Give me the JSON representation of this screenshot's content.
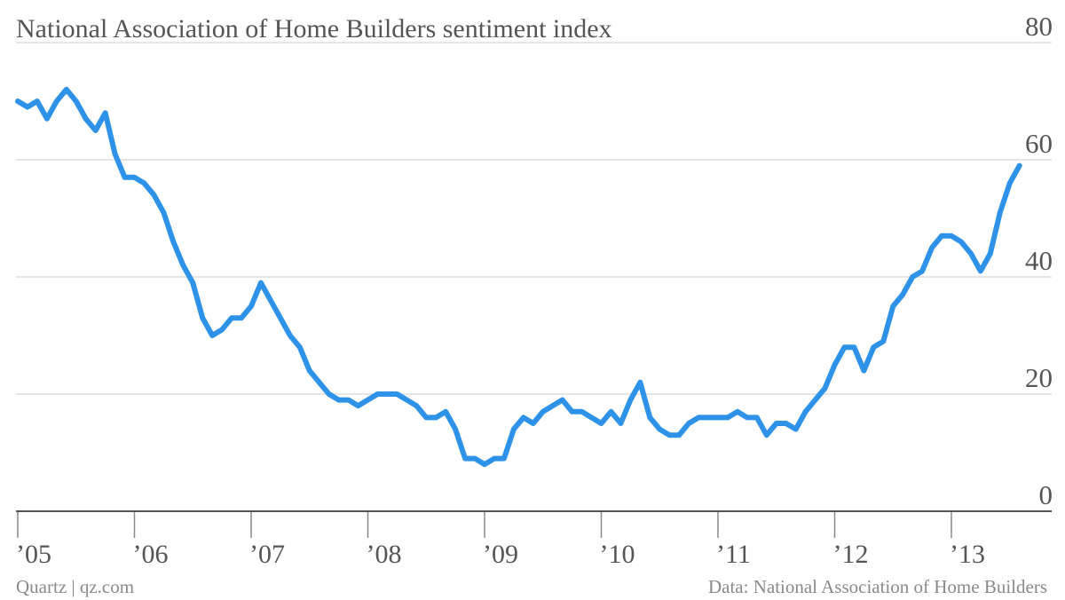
{
  "chart_data": {
    "type": "line",
    "title": "National Association of Home Builders sentiment index",
    "xlabel": "",
    "ylabel": "",
    "ylim": [
      0,
      80
    ],
    "yticks": [
      "0",
      "20",
      "40",
      "60",
      "80"
    ],
    "xticks": [
      "’05",
      "’06",
      "’07",
      "’08",
      "’09",
      "’10",
      "’11",
      "’12",
      "’13"
    ],
    "x_start": "2005-01",
    "x_end": "2013-07",
    "grid": true,
    "series": [
      {
        "color": "#2e93e8",
        "values": [
          70,
          69,
          70,
          67,
          70,
          72,
          70,
          67,
          65,
          68,
          61,
          57,
          57,
          56,
          54,
          51,
          46,
          42,
          39,
          33,
          30,
          31,
          33,
          33,
          35,
          39,
          36,
          33,
          30,
          28,
          24,
          22,
          20,
          19,
          19,
          18,
          19,
          20,
          20,
          20,
          19,
          18,
          16,
          16,
          17,
          14,
          9,
          9,
          8,
          9,
          9,
          14,
          16,
          15,
          17,
          18,
          19,
          17,
          17,
          16,
          15,
          17,
          15,
          19,
          22,
          16,
          14,
          13,
          13,
          15,
          16,
          16,
          16,
          16,
          17,
          16,
          16,
          13,
          15,
          15,
          14,
          17,
          19,
          21,
          25,
          28,
          28,
          24,
          28,
          29,
          35,
          37,
          40,
          41,
          45,
          47,
          47,
          46,
          44,
          41,
          44,
          51,
          56,
          59
        ]
      }
    ]
  },
  "footer": {
    "source_left": "Quartz | qz.com",
    "source_right": "Data: National Association of Home Builders"
  }
}
